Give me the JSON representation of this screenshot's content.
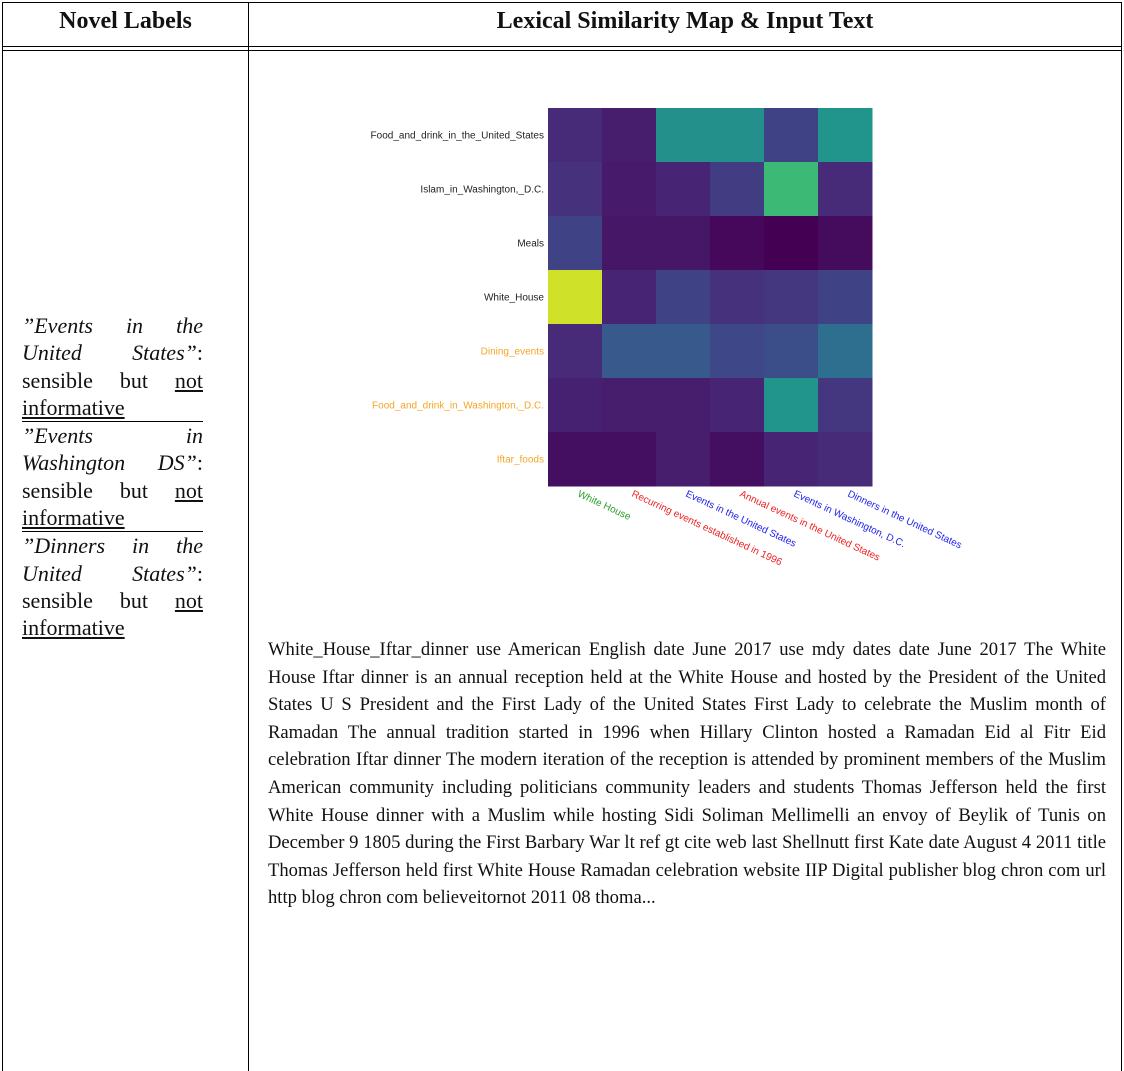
{
  "header": {
    "left": "Novel Labels",
    "right": "Lexical Similarity Map & Input Text"
  },
  "labels": [
    {
      "label": "”Events in the United States”",
      "assessment": ": sensible but",
      "verdict": "not informative"
    },
    {
      "label": "”Events in Washington DS”",
      "assessment": ": sensible but",
      "verdict": "not informative"
    },
    {
      "label": "”Dinners in the United States”",
      "assessment": ": sensible but",
      "verdict": "not informative"
    }
  ],
  "heatmap": {
    "rows": [
      {
        "name": "Food_and_drink_in_the_United_States",
        "color": "#222222"
      },
      {
        "name": "Islam_in_Washington,_D.C.",
        "color": "#222222"
      },
      {
        "name": "Meals",
        "color": "#222222"
      },
      {
        "name": "White_House",
        "color": "#222222"
      },
      {
        "name": "Dining_events",
        "color": "#f5a623"
      },
      {
        "name": "Food_and_drink_in_Washington,_D.C.",
        "color": "#f5a623"
      },
      {
        "name": "Iftar_foods",
        "color": "#f5a623"
      }
    ],
    "columns": [
      {
        "name": "White House",
        "color": "#2ca02c"
      },
      {
        "name": "Recurring events established in 1996",
        "color": "#ee2222"
      },
      {
        "name": "Events in the United States",
        "color": "#2222ee"
      },
      {
        "name": "Annual events in the United States",
        "color": "#ee2222"
      },
      {
        "name": "Events in Washington, D.C.",
        "color": "#2222ee"
      },
      {
        "name": "Dinners in the United States",
        "color": "#2222ee"
      }
    ],
    "values": [
      [
        0.12,
        0.08,
        0.5,
        0.5,
        0.2,
        0.52
      ],
      [
        0.14,
        0.07,
        0.1,
        0.18,
        0.68,
        0.12
      ],
      [
        0.2,
        0.06,
        0.06,
        0.02,
        0.0,
        0.03
      ],
      [
        0.93,
        0.1,
        0.2,
        0.14,
        0.16,
        0.2
      ],
      [
        0.12,
        0.28,
        0.28,
        0.22,
        0.24,
        0.36
      ],
      [
        0.09,
        0.08,
        0.08,
        0.1,
        0.52,
        0.16
      ],
      [
        0.04,
        0.04,
        0.08,
        0.04,
        0.1,
        0.12
      ]
    ],
    "colormap": "viridis",
    "vmin": 0,
    "vmax": 1
  },
  "input_text": "White_House_Iftar_dinner use American English date June 2017 use mdy dates date June 2017 The White House Iftar dinner is an annual reception held at the White House and hosted by the President of the United States U S President and the First Lady of the United States First Lady to celebrate the Muslim month of Ramadan The annual tradition started in 1996 when Hillary Clinton hosted a Ramadan Eid al Fitr Eid celebration Iftar dinner The modern iteration of the reception is attended by prominent members of the Muslim American community including politicians community leaders and students Thomas Jefferson held the first White House dinner with a Muslim while hosting Sidi Soliman Mellimelli an envoy of Beylik of Tunis on December 9 1805 during the First Barbary War lt ref gt cite web last Shellnutt first Kate date August 4 2011 title Thomas Jefferson held first White House Ramadan celebration website IIP Digital publisher blog chron com url http blog chron com believeitornot 2011 08 thoma..."
}
